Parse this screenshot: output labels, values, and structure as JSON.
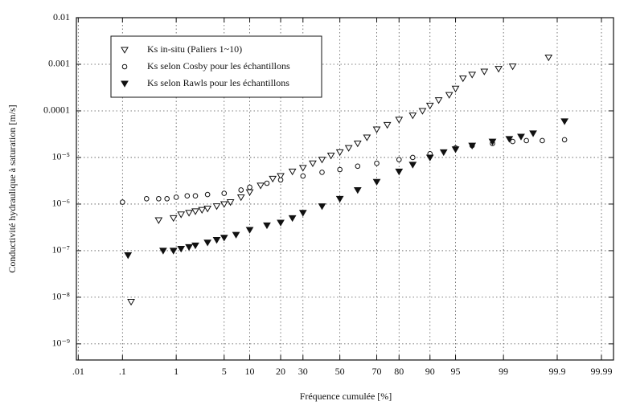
{
  "chart_data": {
    "type": "scatter",
    "ylabel": "Conductivité hydraulique à saturation [m/s]",
    "xlabel": "Fréquence cumulée [%]",
    "xscale": "probability",
    "yscale": "log",
    "grid": true,
    "legend": "upper left",
    "xlim": [
      0.009,
      99.995
    ],
    "ylim": [
      4.5e-10,
      0.01
    ],
    "xticks": [
      {
        "value": 0.01,
        "label": ".01"
      },
      {
        "value": 0.1,
        "label": ".1"
      },
      1,
      5,
      10,
      20,
      30,
      50,
      70,
      80,
      90,
      95,
      99,
      99.9,
      99.99
    ],
    "yticks": [
      {
        "value": 1e-09,
        "label": "10⁻⁹"
      },
      {
        "value": 1e-08,
        "label": "10⁻⁸"
      },
      {
        "value": 1e-07,
        "label": "10⁻⁷"
      },
      {
        "value": 1e-06,
        "label": "10⁻⁶"
      },
      {
        "value": 1e-05,
        "label": "10⁻⁵"
      },
      0.0001,
      0.001,
      0.01
    ],
    "series": [
      {
        "name": "Ks in-situ (Paliers 1~10)",
        "color": "#111111",
        "marker": "triangle-down-open",
        "x": [
          0.15,
          0.5,
          0.9,
          1.2,
          1.6,
          2,
          2.5,
          3,
          4,
          5,
          6,
          8,
          10,
          13,
          17,
          20,
          25,
          30,
          35,
          40,
          45,
          50,
          55,
          60,
          65,
          70,
          75,
          80,
          85,
          88,
          90,
          92,
          94,
          95,
          96,
          97,
          98,
          98.8,
          99.3,
          99.85
        ],
        "values": [
          8e-09,
          4.5e-07,
          5e-07,
          6e-07,
          6.5e-07,
          7e-07,
          7.5e-07,
          8e-07,
          9e-07,
          1e-06,
          1.1e-06,
          1.4e-06,
          1.8e-06,
          2.5e-06,
          3.5e-06,
          4e-06,
          5e-06,
          6e-06,
          7.5e-06,
          9e-06,
          1.1e-05,
          1.3e-05,
          1.6e-05,
          2e-05,
          2.7e-05,
          4e-05,
          5e-05,
          6.5e-05,
          8e-05,
          0.0001,
          0.00013,
          0.00017,
          0.00022,
          0.0003,
          0.0005,
          0.0006,
          0.0007,
          0.0008,
          0.0009,
          0.0014
        ]
      },
      {
        "name": "Ks selon Cosby pour les échantillons",
        "color": "#111111",
        "marker": "circle-open",
        "x": [
          0.1,
          0.3,
          0.5,
          0.7,
          1,
          1.5,
          2,
          3,
          5,
          8,
          10,
          15,
          20,
          30,
          40,
          50,
          60,
          70,
          80,
          85,
          90,
          95,
          97,
          98.5,
          99.3,
          99.6,
          99.8,
          99.93
        ],
        "values": [
          1.1e-06,
          1.3e-06,
          1.3e-06,
          1.3e-06,
          1.4e-06,
          1.5e-06,
          1.5e-06,
          1.6e-06,
          1.7e-06,
          2e-06,
          2.3e-06,
          2.8e-06,
          3.3e-06,
          4e-06,
          4.8e-06,
          5.5e-06,
          6.5e-06,
          7.5e-06,
          9e-06,
          1e-05,
          1.2e-05,
          1.6e-05,
          1.8e-05,
          2e-05,
          2.2e-05,
          2.3e-05,
          2.3e-05,
          2.4e-05
        ]
      },
      {
        "name": "Ks selon Rawls pour les échantillons",
        "color": "#111111",
        "marker": "triangle-down",
        "x": [
          0.13,
          0.6,
          0.9,
          1.2,
          1.6,
          2,
          3,
          4,
          5,
          7,
          10,
          15,
          20,
          25,
          30,
          40,
          50,
          60,
          70,
          80,
          85,
          90,
          93,
          95,
          97,
          98.5,
          99.2,
          99.5,
          99.7,
          99.93
        ],
        "values": [
          8e-08,
          1e-07,
          1e-07,
          1.1e-07,
          1.2e-07,
          1.3e-07,
          1.5e-07,
          1.7e-07,
          1.9e-07,
          2.2e-07,
          2.8e-07,
          3.5e-07,
          4e-07,
          5e-07,
          6.5e-07,
          9e-07,
          1.3e-06,
          2e-06,
          3e-06,
          5e-06,
          7e-06,
          1e-05,
          1.3e-05,
          1.5e-05,
          1.8e-05,
          2.2e-05,
          2.5e-05,
          2.8e-05,
          3.3e-05,
          6e-05
        ]
      }
    ]
  }
}
